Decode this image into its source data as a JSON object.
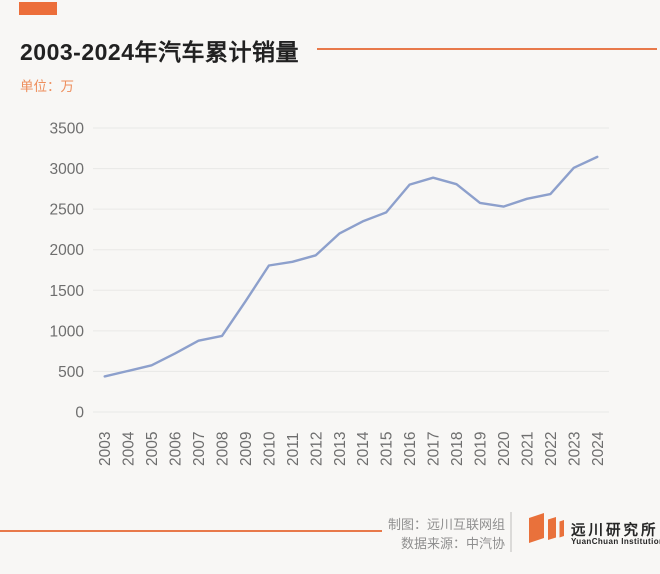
{
  "page": {
    "background": "#f8f7f5",
    "accent_color": "#e9713b"
  },
  "header": {
    "title": "2003-2024年汽车累计销量",
    "unit_label": "单位：万"
  },
  "chart_data": {
    "type": "line",
    "title": "2003-2024年汽车累计销量",
    "unit": "万",
    "categories": [
      "2003",
      "2004",
      "2005",
      "2006",
      "2007",
      "2008",
      "2009",
      "2010",
      "2011",
      "2012",
      "2013",
      "2014",
      "2015",
      "2016",
      "2017",
      "2018",
      "2019",
      "2020",
      "2021",
      "2022",
      "2023",
      "2024"
    ],
    "series": [
      {
        "name": "汽车累计销量",
        "values": [
          439,
          507,
          576,
          722,
          879,
          938,
          1364,
          1806,
          1851,
          1931,
          2198,
          2349,
          2460,
          2803,
          2888,
          2808,
          2577,
          2531,
          2628,
          2686,
          3009,
          3144
        ]
      }
    ],
    "ylim": [
      0,
      3500
    ],
    "yticks": [
      0,
      500,
      1000,
      1500,
      2000,
      2500,
      3000,
      3500
    ],
    "grid": "horizontal",
    "legend": "none",
    "line_color": "#8da0cc",
    "gridline_color": "#e9e8e6",
    "tick_label_color": "#6e6e6e"
  },
  "footer": {
    "credit_label": "制图：远川互联网组",
    "source_label": "数据来源：中汽协",
    "logo": {
      "icon": "yuanchuan-bars-icon",
      "name_cn": "远川研究所",
      "name_en": "YuanChuan Institution"
    }
  }
}
